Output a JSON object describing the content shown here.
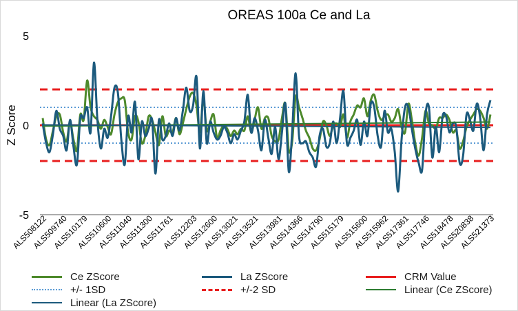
{
  "chart_data": {
    "type": "line",
    "title": "OREAS 100a Ce and La",
    "xlabel": "",
    "ylabel": "Z Score",
    "ylim": [
      -5,
      5
    ],
    "yticks": [
      -5,
      0,
      5
    ],
    "tick_labels": [
      "ALS508122",
      "ALS509740",
      "ALS510179",
      "ALS510600",
      "ALS511040",
      "ALS511300",
      "ALS511761",
      "ALS512203",
      "ALS512600",
      "ALS513021",
      "ALS513521",
      "ALS513981",
      "ALS514366",
      "ALS514790",
      "ALS515179",
      "ALS515600",
      "ALS515962",
      "ALS517361",
      "ALS517746",
      "ALS518478",
      "ALS520838",
      "ALS521373"
    ],
    "point_count": 132,
    "reference_lines": [
      {
        "name": "CRM Value",
        "values": [
          0
        ],
        "color": "#e81f1f",
        "style": "solid"
      },
      {
        "name": "+/- 1SD",
        "values": [
          1,
          -1
        ],
        "color": "#5b9bd5",
        "style": "dotted"
      },
      {
        "name": "+/-2 SD",
        "values": [
          2,
          -2
        ],
        "color": "#e81f1f",
        "style": "dashed"
      }
    ],
    "trendlines": [
      {
        "name": "Linear (Ce ZScore)",
        "start": -0.05,
        "end": 0.18,
        "color": "#2e7d32"
      },
      {
        "name": "Linear (La ZScore)",
        "start": 0.02,
        "end": -0.12,
        "color": "#1c5a7d"
      }
    ],
    "series": [
      {
        "name": "Ce ZScore",
        "color": "#4e8a2c",
        "values": [
          0.4,
          -0.8,
          -1.1,
          -0.3,
          0.5,
          0.6,
          -0.4,
          -0.9,
          0.2,
          -0.8,
          -1.4,
          0.6,
          0.3,
          2.5,
          1.0,
          0.5,
          0.3,
          -0.2,
          0.3,
          -0.1,
          -0.5,
          0.6,
          1.3,
          1.5,
          1.4,
          -0.4,
          -0.8,
          0.5,
          0.2,
          -1.0,
          -0.6,
          0.5,
          0.3,
          -0.4,
          -1.1,
          0.5,
          -0.6,
          -0.3,
          -0.4,
          0.4,
          -0.5,
          0.1,
          0.9,
          1.6,
          1.8,
          1.1,
          -0.4,
          1.5,
          -0.3,
          0.2,
          0.6,
          -0.7,
          -0.3,
          0.0,
          -0.2,
          -0.6,
          -0.3,
          -0.5,
          -0.2,
          -0.3,
          0.5,
          -0.4,
          0.3,
          1.0,
          -0.2,
          0.4,
          0.4,
          -0.6,
          -0.9,
          -0.8,
          0.4,
          1.2,
          -1.4,
          -0.9,
          1.6,
          1.0,
          0.4,
          -0.3,
          -0.7,
          -1.3,
          -1.4,
          -0.8,
          0.2,
          0.0,
          -0.6,
          0.0,
          0.1,
          -0.1,
          0.6,
          -0.7,
          0.2,
          0.6,
          1.1,
          1.0,
          1.5,
          0.5,
          1.4,
          1.7,
          0.8,
          0.3,
          0.5,
          0.6,
          0.2,
          0.4,
          0.9,
          -0.1,
          -0.4,
          1.2,
          0.3,
          -1.0,
          -1.7,
          -0.7,
          0.8,
          0.1,
          0.0,
          -0.2,
          0.4,
          0.4,
          0.6,
          0.3,
          -0.4,
          -0.3,
          -1.3,
          -0.9,
          -0.1,
          0.3,
          0.6,
          0.9,
          0.8,
          0.4,
          -0.2,
          0.6
        ]
      },
      {
        "name": "La ZScore",
        "color": "#1c5a7d",
        "values": [
          0.1,
          -1.0,
          -1.5,
          -0.5,
          0.8,
          -0.2,
          -0.6,
          -1.4,
          0.3,
          -1.2,
          -2.2,
          0.4,
          0.4,
          1.0,
          -0.4,
          3.5,
          0.3,
          -1.3,
          -0.2,
          -0.7,
          0.5,
          2.1,
          1.8,
          -0.8,
          -2.2,
          0.5,
          -0.4,
          1.3,
          -1.9,
          0.2,
          -0.6,
          -0.2,
          0.3,
          -2.7,
          0.3,
          -0.8,
          -0.6,
          0.1,
          -0.6,
          0.4,
          -0.3,
          0.8,
          2.1,
          0.8,
          1.1,
          2.7,
          -1.3,
          1.9,
          -1.0,
          0.2,
          -0.4,
          -0.8,
          -0.6,
          -0.1,
          -0.4,
          -1.0,
          -0.5,
          -0.8,
          -0.3,
          0.2,
          1.7,
          -0.4,
          0.4,
          -0.3,
          -1.4,
          0.3,
          -0.7,
          -1.6,
          -0.1,
          -1.9,
          -0.4,
          1.2,
          -2.6,
          -0.3,
          2.9,
          -0.6,
          -1.0,
          -0.9,
          -1.5,
          -1.8,
          -2.3,
          -0.6,
          -0.2,
          -1.2,
          -1.0,
          0.2,
          -1.0,
          0.4,
          1.9,
          -1.0,
          -0.7,
          -0.3,
          0.3,
          -1.1,
          0.2,
          -0.6,
          1.2,
          1.0,
          -0.6,
          -1.2,
          0.8,
          -0.4,
          -0.2,
          -1.5,
          -3.7,
          -0.8,
          1.0,
          1.0,
          -0.2,
          -1.3,
          -2.1,
          -2.5,
          0.6,
          1.0,
          -1.8,
          -0.1,
          -1.5,
          0.5,
          0.5,
          -0.4,
          0.1,
          -0.1,
          -2.1,
          -1.7,
          0.6,
          0.3,
          -0.3,
          1.2,
          0.4,
          -1.4,
          0.6,
          1.4
        ]
      }
    ],
    "legend": {
      "position": "bottom",
      "entries": [
        "Ce ZScore",
        "La ZScore",
        "CRM Value",
        "+/- 1SD",
        "+/-2 SD",
        "Linear (Ce ZScore)",
        "Linear (La ZScore)"
      ]
    },
    "grid": false
  }
}
